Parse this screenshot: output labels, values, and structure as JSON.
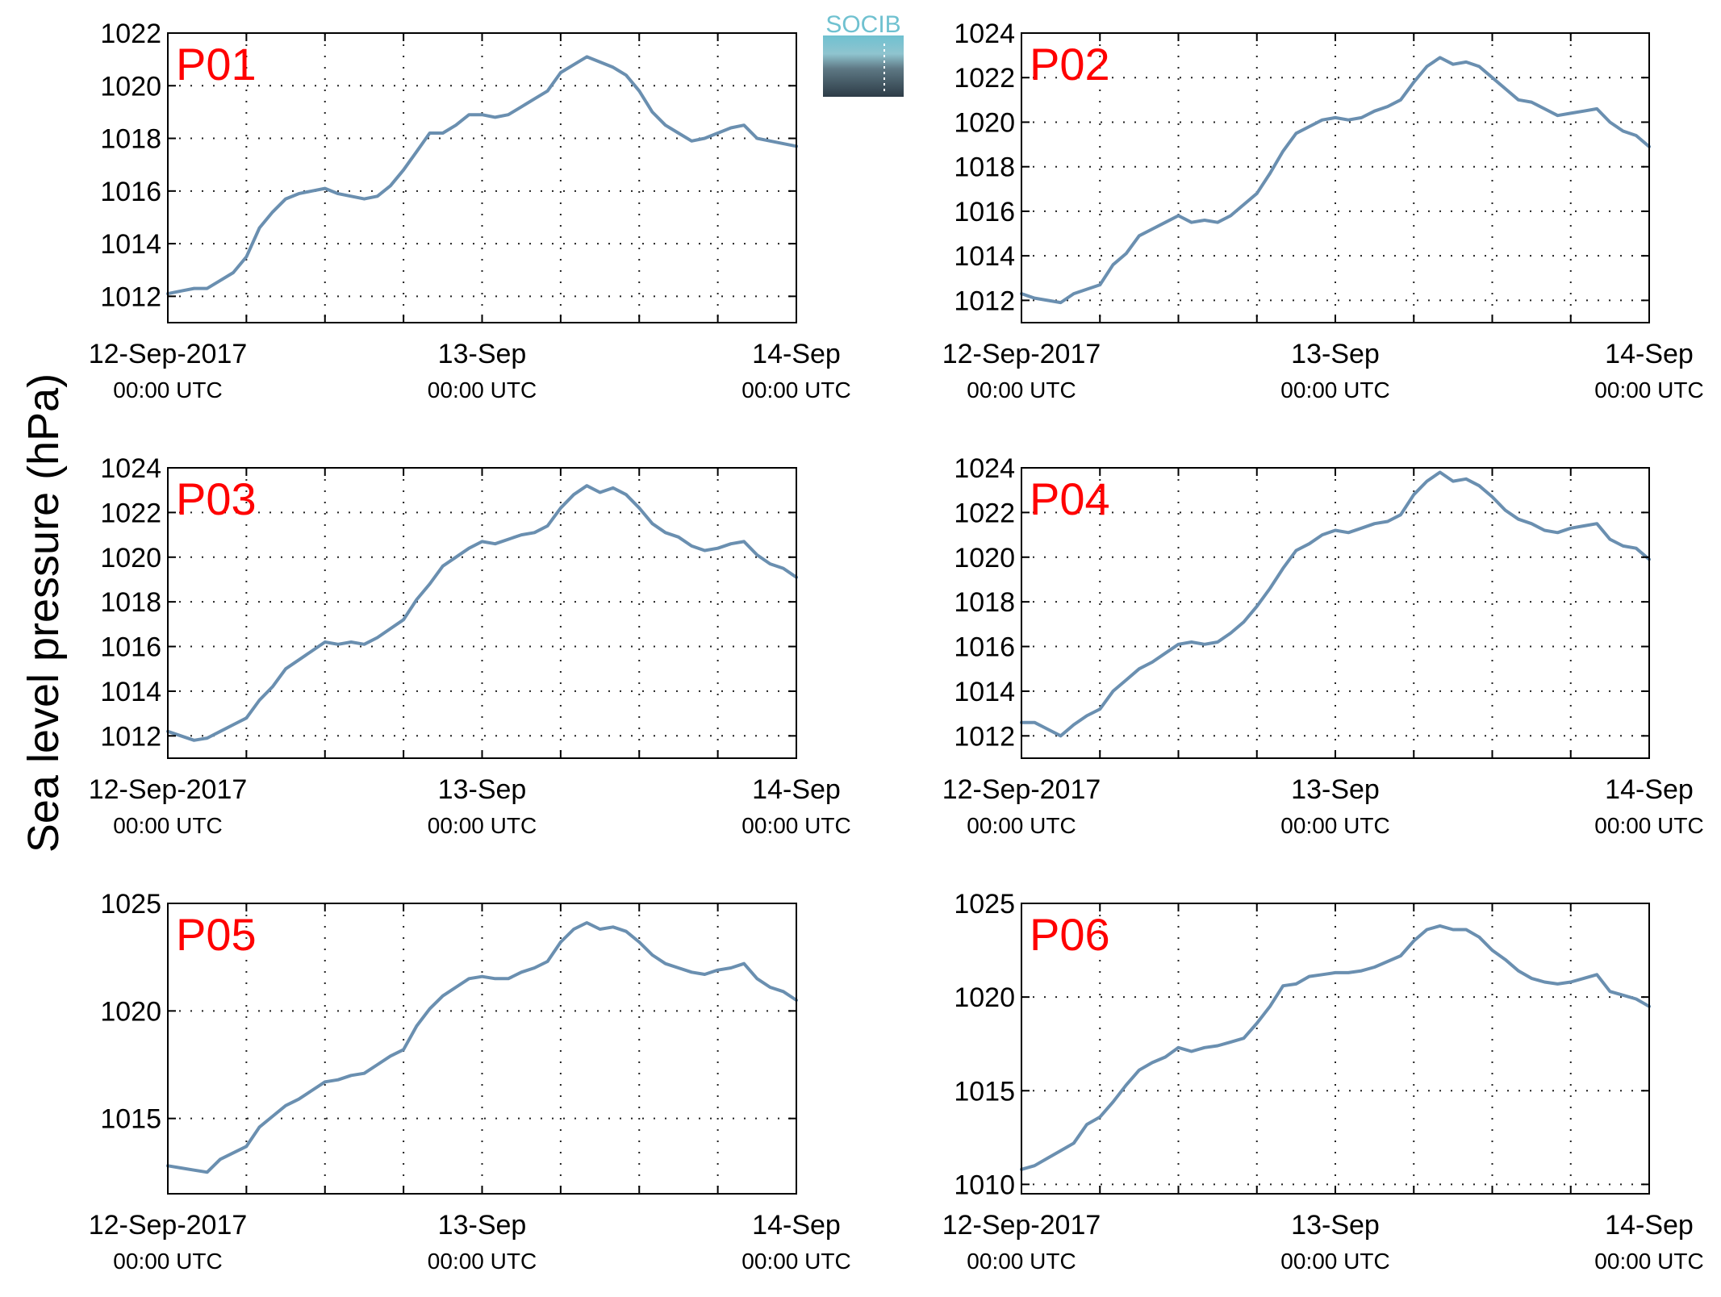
{
  "figure": {
    "ylabel": "Sea level pressure (hPa)",
    "line_color": "#6a8fb0",
    "panel_label_color": "#ff0000",
    "logo_text": "SOCIB"
  },
  "chart_data": [
    {
      "type": "line",
      "panel_label": "P01",
      "ylim": [
        1011,
        1022
      ],
      "yticks": [
        1012,
        1014,
        1016,
        1018,
        1020,
        1022
      ],
      "xlim": [
        0,
        48
      ],
      "xticks": [
        0,
        24,
        48
      ],
      "xticklabels": [
        [
          "12-Sep-2017",
          "00:00 UTC"
        ],
        [
          "13-Sep",
          "00:00 UTC"
        ],
        [
          "14-Sep",
          "00:00 UTC"
        ]
      ],
      "grid": true,
      "series": [
        {
          "x": [
            0,
            1,
            2,
            3,
            4,
            5,
            6,
            7,
            8,
            9,
            10,
            11,
            12,
            13,
            14,
            15,
            16,
            17,
            18,
            19,
            20,
            21,
            22,
            23,
            24,
            25,
            26,
            27,
            28,
            29,
            30,
            31,
            32,
            33,
            34,
            35,
            36,
            37,
            38,
            39,
            40,
            41,
            42,
            43,
            44,
            45,
            46,
            47,
            48
          ],
          "y": [
            1012.1,
            1012.2,
            1012.3,
            1012.3,
            1012.6,
            1012.9,
            1013.5,
            1014.6,
            1015.2,
            1015.7,
            1015.9,
            1016.0,
            1016.1,
            1015.9,
            1015.8,
            1015.7,
            1015.8,
            1016.2,
            1016.8,
            1017.5,
            1018.2,
            1018.2,
            1018.5,
            1018.9,
            1018.9,
            1018.8,
            1018.9,
            1019.2,
            1019.5,
            1019.8,
            1020.5,
            1020.8,
            1021.1,
            1020.9,
            1020.7,
            1020.4,
            1019.8,
            1019.0,
            1018.5,
            1018.2,
            1017.9,
            1018.0,
            1018.2,
            1018.4,
            1018.5,
            1018.0,
            1017.9,
            1017.8,
            1017.7
          ]
        }
      ]
    },
    {
      "type": "line",
      "panel_label": "P02",
      "ylim": [
        1011,
        1024
      ],
      "yticks": [
        1012,
        1014,
        1016,
        1018,
        1020,
        1022,
        1024
      ],
      "xlim": [
        0,
        48
      ],
      "xticks": [
        0,
        24,
        48
      ],
      "xticklabels": [
        [
          "12-Sep-2017",
          "00:00 UTC"
        ],
        [
          "13-Sep",
          "00:00 UTC"
        ],
        [
          "14-Sep",
          "00:00 UTC"
        ]
      ],
      "grid": true,
      "series": [
        {
          "x": [
            0,
            1,
            2,
            3,
            4,
            5,
            6,
            7,
            8,
            9,
            10,
            11,
            12,
            13,
            14,
            15,
            16,
            17,
            18,
            19,
            20,
            21,
            22,
            23,
            24,
            25,
            26,
            27,
            28,
            29,
            30,
            31,
            32,
            33,
            34,
            35,
            36,
            37,
            38,
            39,
            40,
            41,
            42,
            43,
            44,
            45,
            46,
            47,
            48
          ],
          "y": [
            1012.3,
            1012.1,
            1012.0,
            1011.9,
            1012.3,
            1012.5,
            1012.7,
            1013.6,
            1014.1,
            1014.9,
            1015.2,
            1015.5,
            1015.8,
            1015.5,
            1015.6,
            1015.5,
            1015.8,
            1016.3,
            1016.8,
            1017.7,
            1018.7,
            1019.5,
            1019.8,
            1020.1,
            1020.2,
            1020.1,
            1020.2,
            1020.5,
            1020.7,
            1021.0,
            1021.8,
            1022.5,
            1022.9,
            1022.6,
            1022.7,
            1022.5,
            1022.0,
            1021.5,
            1021.0,
            1020.9,
            1020.6,
            1020.3,
            1020.4,
            1020.5,
            1020.6,
            1020.0,
            1019.6,
            1019.4,
            1018.9
          ]
        }
      ]
    },
    {
      "type": "line",
      "panel_label": "P03",
      "ylim": [
        1011,
        1024
      ],
      "yticks": [
        1012,
        1014,
        1016,
        1018,
        1020,
        1022,
        1024
      ],
      "xlim": [
        0,
        48
      ],
      "xticks": [
        0,
        24,
        48
      ],
      "xticklabels": [
        [
          "12-Sep-2017",
          "00:00 UTC"
        ],
        [
          "13-Sep",
          "00:00 UTC"
        ],
        [
          "14-Sep",
          "00:00 UTC"
        ]
      ],
      "grid": true,
      "series": [
        {
          "x": [
            0,
            1,
            2,
            3,
            4,
            5,
            6,
            7,
            8,
            9,
            10,
            11,
            12,
            13,
            14,
            15,
            16,
            17,
            18,
            19,
            20,
            21,
            22,
            23,
            24,
            25,
            26,
            27,
            28,
            29,
            30,
            31,
            32,
            33,
            34,
            35,
            36,
            37,
            38,
            39,
            40,
            41,
            42,
            43,
            44,
            45,
            46,
            47,
            48
          ],
          "y": [
            1012.2,
            1012.0,
            1011.8,
            1011.9,
            1012.2,
            1012.5,
            1012.8,
            1013.6,
            1014.2,
            1015.0,
            1015.4,
            1015.8,
            1016.2,
            1016.1,
            1016.2,
            1016.1,
            1016.4,
            1016.8,
            1017.2,
            1018.1,
            1018.8,
            1019.6,
            1020.0,
            1020.4,
            1020.7,
            1020.6,
            1020.8,
            1021.0,
            1021.1,
            1021.4,
            1022.2,
            1022.8,
            1023.2,
            1022.9,
            1023.1,
            1022.8,
            1022.2,
            1021.5,
            1021.1,
            1020.9,
            1020.5,
            1020.3,
            1020.4,
            1020.6,
            1020.7,
            1020.1,
            1019.7,
            1019.5,
            1019.1
          ]
        }
      ]
    },
    {
      "type": "line",
      "panel_label": "P04",
      "ylim": [
        1011,
        1024
      ],
      "yticks": [
        1012,
        1014,
        1016,
        1018,
        1020,
        1022,
        1024
      ],
      "xlim": [
        0,
        48
      ],
      "xticks": [
        0,
        24,
        48
      ],
      "xticklabels": [
        [
          "12-Sep-2017",
          "00:00 UTC"
        ],
        [
          "13-Sep",
          "00:00 UTC"
        ],
        [
          "14-Sep",
          "00:00 UTC"
        ]
      ],
      "grid": true,
      "series": [
        {
          "x": [
            0,
            1,
            2,
            3,
            4,
            5,
            6,
            7,
            8,
            9,
            10,
            11,
            12,
            13,
            14,
            15,
            16,
            17,
            18,
            19,
            20,
            21,
            22,
            23,
            24,
            25,
            26,
            27,
            28,
            29,
            30,
            31,
            32,
            33,
            34,
            35,
            36,
            37,
            38,
            39,
            40,
            41,
            42,
            43,
            44,
            45,
            46,
            47,
            48
          ],
          "y": [
            1012.6,
            1012.6,
            1012.3,
            1012.0,
            1012.5,
            1012.9,
            1013.2,
            1014.0,
            1014.5,
            1015.0,
            1015.3,
            1015.7,
            1016.1,
            1016.2,
            1016.1,
            1016.2,
            1016.6,
            1017.1,
            1017.8,
            1018.6,
            1019.5,
            1020.3,
            1020.6,
            1021.0,
            1021.2,
            1021.1,
            1021.3,
            1021.5,
            1021.6,
            1021.9,
            1022.8,
            1023.4,
            1023.8,
            1023.4,
            1023.5,
            1023.2,
            1022.7,
            1022.1,
            1021.7,
            1021.5,
            1021.2,
            1021.1,
            1021.3,
            1021.4,
            1021.5,
            1020.8,
            1020.5,
            1020.4,
            1019.9
          ]
        }
      ]
    },
    {
      "type": "line",
      "panel_label": "P05",
      "ylim": [
        1011.5,
        1025
      ],
      "yticks": [
        1015,
        1020,
        1025
      ],
      "xlim": [
        0,
        48
      ],
      "xticks": [
        0,
        24,
        48
      ],
      "xticklabels": [
        [
          "12-Sep-2017",
          "00:00 UTC"
        ],
        [
          "13-Sep",
          "00:00 UTC"
        ],
        [
          "14-Sep",
          "00:00 UTC"
        ]
      ],
      "grid": true,
      "series": [
        {
          "x": [
            0,
            1,
            2,
            3,
            4,
            5,
            6,
            7,
            8,
            9,
            10,
            11,
            12,
            13,
            14,
            15,
            16,
            17,
            18,
            19,
            20,
            21,
            22,
            23,
            24,
            25,
            26,
            27,
            28,
            29,
            30,
            31,
            32,
            33,
            34,
            35,
            36,
            37,
            38,
            39,
            40,
            41,
            42,
            43,
            44,
            45,
            46,
            47,
            48
          ],
          "y": [
            1012.8,
            1012.7,
            1012.6,
            1012.5,
            1013.1,
            1013.4,
            1013.7,
            1014.6,
            1015.1,
            1015.6,
            1015.9,
            1016.3,
            1016.7,
            1016.8,
            1017.0,
            1017.1,
            1017.5,
            1017.9,
            1018.2,
            1019.3,
            1020.1,
            1020.7,
            1021.1,
            1021.5,
            1021.6,
            1021.5,
            1021.5,
            1021.8,
            1022.0,
            1022.3,
            1023.2,
            1023.8,
            1024.1,
            1023.8,
            1023.9,
            1023.7,
            1023.2,
            1022.6,
            1022.2,
            1022.0,
            1021.8,
            1021.7,
            1021.9,
            1022.0,
            1022.2,
            1021.5,
            1021.1,
            1020.9,
            1020.5
          ]
        }
      ]
    },
    {
      "type": "line",
      "panel_label": "P06",
      "ylim": [
        1009.5,
        1025
      ],
      "yticks": [
        1010,
        1015,
        1020,
        1025
      ],
      "xlim": [
        0,
        48
      ],
      "xticks": [
        0,
        24,
        48
      ],
      "xticklabels": [
        [
          "12-Sep-2017",
          "00:00 UTC"
        ],
        [
          "13-Sep",
          "00:00 UTC"
        ],
        [
          "14-Sep",
          "00:00 UTC"
        ]
      ],
      "grid": true,
      "series": [
        {
          "x": [
            0,
            1,
            2,
            3,
            4,
            5,
            6,
            7,
            8,
            9,
            10,
            11,
            12,
            13,
            14,
            15,
            16,
            17,
            18,
            19,
            20,
            21,
            22,
            23,
            24,
            25,
            26,
            27,
            28,
            29,
            30,
            31,
            32,
            33,
            34,
            35,
            36,
            37,
            38,
            39,
            40,
            41,
            42,
            43,
            44,
            45,
            46,
            47,
            48
          ],
          "y": [
            1010.8,
            1011.0,
            1011.4,
            1011.8,
            1012.2,
            1013.2,
            1013.6,
            1014.4,
            1015.3,
            1016.1,
            1016.5,
            1016.8,
            1017.3,
            1017.1,
            1017.3,
            1017.4,
            1017.6,
            1017.8,
            1018.6,
            1019.5,
            1020.6,
            1020.7,
            1021.1,
            1021.2,
            1021.3,
            1021.3,
            1021.4,
            1021.6,
            1021.9,
            1022.2,
            1023.0,
            1023.6,
            1023.8,
            1023.6,
            1023.6,
            1023.2,
            1022.5,
            1022.0,
            1021.4,
            1021.0,
            1020.8,
            1020.7,
            1020.8,
            1021.0,
            1021.2,
            1020.3,
            1020.1,
            1019.9,
            1019.5
          ]
        }
      ]
    }
  ]
}
